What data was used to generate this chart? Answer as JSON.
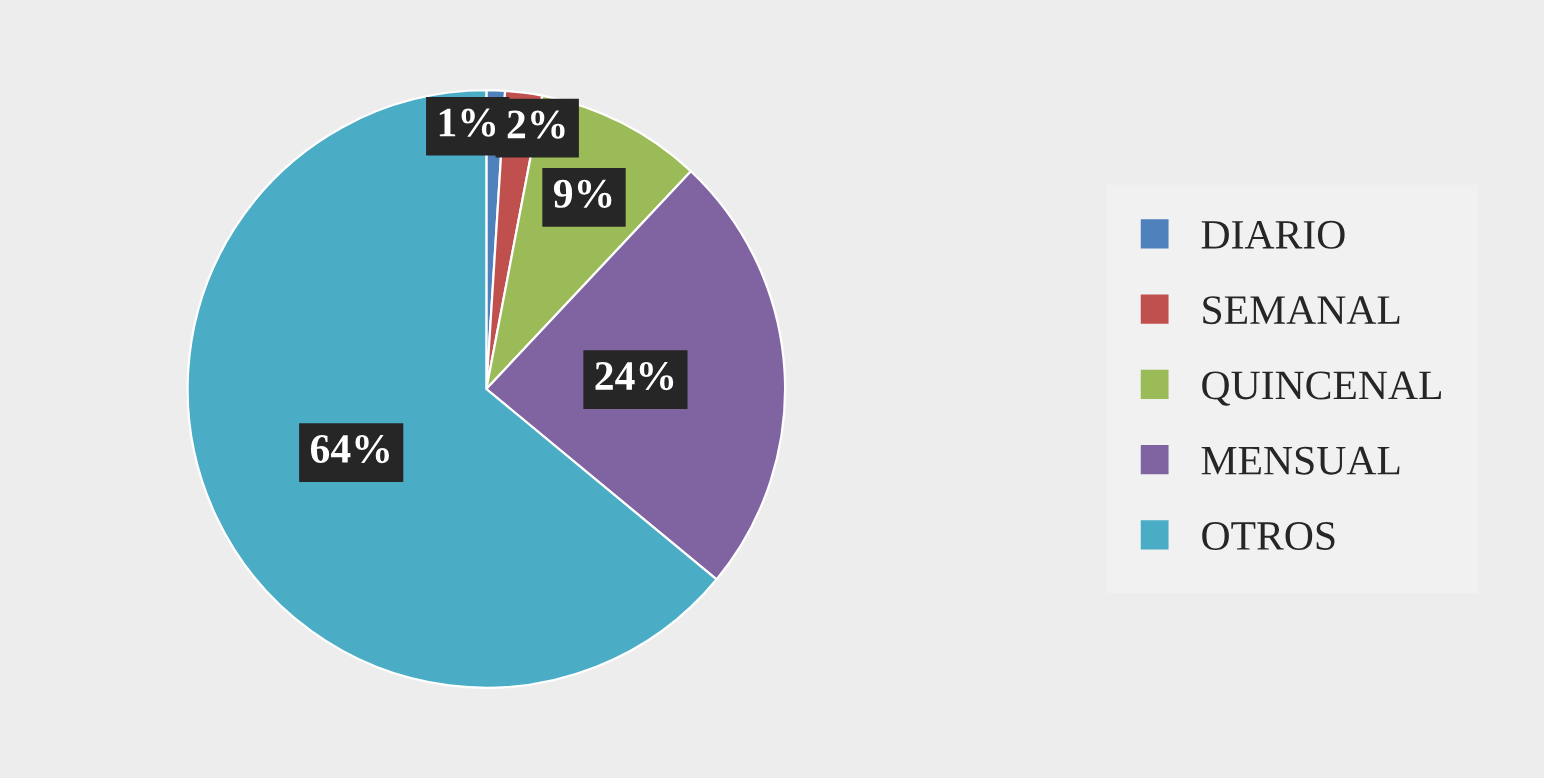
{
  "chart_data": {
    "type": "pie",
    "categories": [
      "DIARIO",
      "SEMANAL",
      "QUINCENAL",
      "MENSUAL",
      "OTROS"
    ],
    "values": [
      1,
      2,
      9,
      24,
      64
    ],
    "colors": [
      "#4f81bd",
      "#c0504d",
      "#9bbb59",
      "#8064a2",
      "#4bacc6"
    ],
    "value_labels": [
      "1%",
      "2%",
      "9%",
      "24%",
      "64%"
    ],
    "legend": "right"
  }
}
